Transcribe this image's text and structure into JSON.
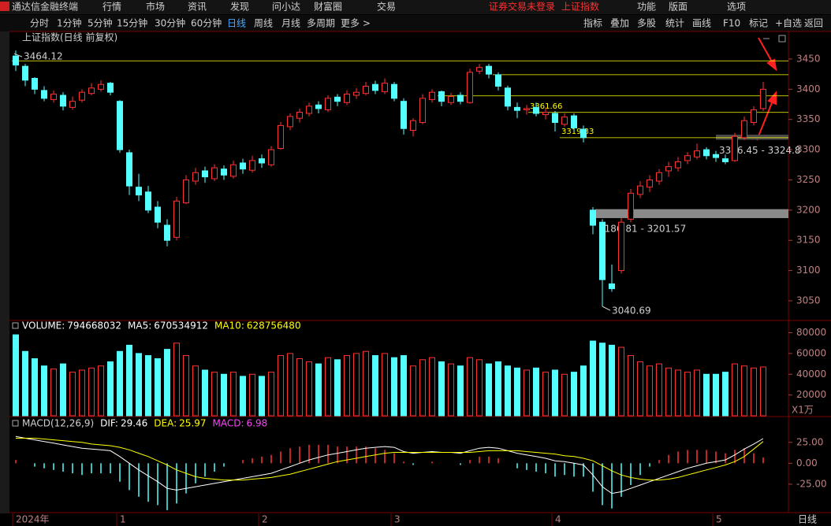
{
  "app_title": "通达信金融终端",
  "menu": [
    "行情",
    "市场",
    "资讯",
    "发现",
    "问小达",
    "财富圈",
    "交易"
  ],
  "status": "证券交易未登录",
  "symbol": "上证指数",
  "top_right": [
    "功能",
    "版面",
    "选项"
  ],
  "periods": [
    "分时",
    "1分钟",
    "5分钟",
    "15分钟",
    "30分钟",
    "60分钟",
    "日线",
    "周线",
    "月线",
    "多周期",
    "更多 >"
  ],
  "active_period": "日线",
  "tools": [
    "指标",
    "叠加",
    "多股",
    "统计",
    "画线",
    "F10",
    "标记",
    "+自选",
    "返回"
  ],
  "period_label": "日线",
  "chart_data": {
    "type": "candlestick",
    "title": "上证指数(日线 前复权)",
    "ylim": [
      3020,
      3476
    ],
    "yticks": [
      3050,
      3100,
      3150,
      3200,
      3250,
      3300,
      3350,
      3400,
      3450
    ],
    "up_color": "#ff3232",
    "down_color": "#54ffff",
    "level_color": "#ffff00",
    "candles": [
      [
        3455,
        3464.12,
        3430,
        3440
      ],
      [
        3438,
        3442,
        3405,
        3415
      ],
      [
        3418,
        3420,
        3392,
        3400
      ],
      [
        3398,
        3405,
        3380,
        3385
      ],
      [
        3383,
        3398,
        3378,
        3392
      ],
      [
        3390,
        3395,
        3365,
        3372
      ],
      [
        3370,
        3388,
        3366,
        3380
      ],
      [
        3382,
        3400,
        3378,
        3395
      ],
      [
        3393,
        3410,
        3390,
        3402
      ],
      [
        3400,
        3415,
        3396,
        3408
      ],
      [
        3410,
        3412,
        3390,
        3395
      ],
      [
        3380,
        3382,
        3295,
        3300
      ],
      [
        3295,
        3300,
        3225,
        3240
      ],
      [
        3238,
        3260,
        3215,
        3225
      ],
      [
        3230,
        3240,
        3195,
        3200
      ],
      [
        3205,
        3215,
        3170,
        3180
      ],
      [
        3175,
        3185,
        3140,
        3150
      ],
      [
        3155,
        3222,
        3150,
        3215
      ],
      [
        3212,
        3258,
        3210,
        3250
      ],
      [
        3248,
        3270,
        3242,
        3262
      ],
      [
        3265,
        3272,
        3245,
        3255
      ],
      [
        3252,
        3276,
        3248,
        3270
      ],
      [
        3268,
        3274,
        3250,
        3258
      ],
      [
        3256,
        3282,
        3252,
        3275
      ],
      [
        3278,
        3285,
        3260,
        3268
      ],
      [
        3266,
        3290,
        3262,
        3282
      ],
      [
        3285,
        3292,
        3270,
        3278
      ],
      [
        3275,
        3306,
        3272,
        3300
      ],
      [
        3302,
        3346,
        3300,
        3340
      ],
      [
        3338,
        3360,
        3332,
        3355
      ],
      [
        3352,
        3368,
        3345,
        3362
      ],
      [
        3360,
        3378,
        3355,
        3372
      ],
      [
        3374,
        3380,
        3360,
        3368
      ],
      [
        3366,
        3390,
        3362,
        3385
      ],
      [
        3387,
        3392,
        3372,
        3380
      ],
      [
        3378,
        3398,
        3374,
        3392
      ],
      [
        3390,
        3402,
        3384,
        3395
      ],
      [
        3393,
        3412,
        3390,
        3405
      ],
      [
        3408,
        3414,
        3392,
        3398
      ],
      [
        3396,
        3418,
        3392,
        3410
      ],
      [
        3408,
        3412,
        3380,
        3385
      ],
      [
        3380,
        3385,
        3325,
        3335
      ],
      [
        3332,
        3352,
        3322,
        3348
      ],
      [
        3345,
        3392,
        3342,
        3385
      ],
      [
        3383,
        3400,
        3378,
        3395
      ],
      [
        3396,
        3398,
        3372,
        3380
      ],
      [
        3378,
        3394,
        3374,
        3388
      ],
      [
        3390,
        3395,
        3375,
        3380
      ],
      [
        3378,
        3434,
        3376,
        3428
      ],
      [
        3430,
        3442,
        3425,
        3436
      ],
      [
        3438,
        3442,
        3418,
        3425
      ],
      [
        3424,
        3428,
        3398,
        3405
      ],
      [
        3402,
        3406,
        3365,
        3372
      ],
      [
        3370,
        3378,
        3352,
        3365
      ],
      [
        3366,
        3374,
        3358,
        3368
      ],
      [
        3370,
        3378,
        3355,
        3360
      ],
      [
        3358,
        3370,
        3350,
        3362
      ],
      [
        3360,
        3364,
        3330,
        3345
      ],
      [
        3342,
        3360,
        3338,
        3354
      ],
      [
        3356,
        3360,
        3330,
        3336
      ],
      [
        3334,
        3340,
        3312,
        3320
      ],
      [
        3200,
        3205,
        3160,
        3175
      ],
      [
        3180,
        3185,
        3040.69,
        3085
      ],
      [
        3078,
        3110,
        3065,
        3070
      ],
      [
        3100,
        3186.81,
        3095,
        3180
      ],
      [
        3185,
        3235,
        3180,
        3228
      ],
      [
        3226,
        3248,
        3220,
        3240
      ],
      [
        3238,
        3258,
        3230,
        3250
      ],
      [
        3248,
        3268,
        3242,
        3262
      ],
      [
        3265,
        3280,
        3255,
        3272
      ],
      [
        3270,
        3288,
        3264,
        3280
      ],
      [
        3282,
        3296,
        3276,
        3290
      ],
      [
        3288,
        3310,
        3284,
        3298
      ],
      [
        3300,
        3304,
        3284,
        3290
      ],
      [
        3292,
        3298,
        3280,
        3287
      ],
      [
        3285,
        3292,
        3276,
        3280
      ],
      [
        3282,
        3328,
        3280,
        3322
      ],
      [
        3320,
        3355,
        3316,
        3348
      ],
      [
        3345,
        3372,
        3340,
        3366
      ],
      [
        3368,
        3412,
        3364,
        3400
      ]
    ],
    "x_labels": [
      "2024年",
      null,
      null,
      null,
      null,
      null,
      null,
      null,
      null,
      null,
      null,
      "1",
      null,
      null,
      null,
      null,
      null,
      null,
      null,
      null,
      null,
      null,
      null,
      null,
      null,
      null,
      "2",
      null,
      null,
      null,
      null,
      null,
      null,
      null,
      null,
      null,
      null,
      null,
      null,
      null,
      "3",
      null,
      null,
      null,
      null,
      null,
      null,
      null,
      null,
      null,
      null,
      null,
      null,
      null,
      null,
      null,
      null,
      "4",
      null,
      null,
      null,
      null,
      null,
      null,
      null,
      null,
      null,
      null,
      null,
      null,
      null,
      null,
      null,
      null,
      "5",
      null,
      null,
      null,
      null,
      null
    ],
    "levels": [
      3447,
      3424,
      3389,
      3361.66,
      3319.83
    ],
    "zones": [
      {
        "low": 3186.81,
        "high": 3201.57,
        "label": "3186.81 - 3201.57"
      },
      {
        "low": 3316.45,
        "high": 3324.8,
        "label": "3316.45 - 3324.8"
      }
    ],
    "volume": {
      "indicators": [
        {
          "name": "VOLUME:",
          "value": 794668032,
          "color": "#ffffff"
        },
        {
          "name": "MA5:",
          "value": 670534912,
          "color": "#ffffff"
        },
        {
          "name": "MA10:",
          "value": 628756480,
          "color": "#ffff00"
        }
      ],
      "values": [
        78000,
        62000,
        55000,
        48000,
        45000,
        50000,
        42000,
        44000,
        46000,
        48000,
        52000,
        62000,
        68000,
        60000,
        58000,
        55000,
        64000,
        70000,
        58000,
        48000,
        44000,
        42000,
        40000,
        42000,
        38000,
        40000,
        38000,
        42000,
        58000,
        60000,
        55000,
        52000,
        50000,
        56000,
        54000,
        58000,
        60000,
        62000,
        58000,
        60000,
        56000,
        58000,
        48000,
        54000,
        56000,
        52000,
        50000,
        48000,
        56000,
        54000,
        50000,
        52000,
        48000,
        46000,
        44000,
        46000,
        42000,
        44000,
        40000,
        42000,
        48000,
        72000,
        70000,
        68000,
        66000,
        58000,
        52000,
        48000,
        50000,
        46000,
        44000,
        42000,
        44000,
        40000,
        40000,
        42000,
        50000,
        48000,
        46000,
        47000
      ],
      "ylim": [
        0,
        88000
      ],
      "yticks": [
        20000,
        40000,
        60000,
        80000
      ],
      "unit": "X1万"
    },
    "macd": {
      "title": "MACD(12,26,9)",
      "indicators": [
        {
          "name": "DIF:",
          "value": 29.46,
          "color": "#ffffff"
        },
        {
          "name": "DEA:",
          "value": 25.97,
          "color": "#ffff00"
        },
        {
          "name": "MACD:",
          "value": 6.98,
          "color": "#ff40ff"
        }
      ],
      "dif": [
        32,
        30,
        28,
        26,
        24,
        22,
        20,
        18,
        17,
        16,
        15,
        8,
        0,
        -8,
        -15,
        -22,
        -30,
        -32,
        -30,
        -28,
        -26,
        -24,
        -22,
        -20,
        -18,
        -16,
        -14,
        -12,
        -8,
        -4,
        0,
        4,
        7,
        10,
        12,
        14,
        16,
        18,
        19,
        20,
        19,
        14,
        12,
        13,
        14,
        13,
        13,
        12,
        15,
        18,
        19,
        18,
        15,
        12,
        10,
        8,
        6,
        3,
        2,
        0,
        -2,
        -14,
        -28,
        -36,
        -34,
        -30,
        -26,
        -22,
        -18,
        -14,
        -10,
        -6,
        -3,
        0,
        2,
        4,
        10,
        17,
        23,
        29.46
      ],
      "dea": [
        30,
        30,
        30,
        29,
        28,
        27,
        26,
        25,
        23,
        22,
        21,
        19,
        16,
        12,
        8,
        3,
        -2,
        -8,
        -12,
        -16,
        -18,
        -19,
        -20,
        -20,
        -20,
        -19,
        -18,
        -17,
        -15,
        -13,
        -10,
        -7,
        -4,
        -1,
        2,
        4,
        6,
        8,
        10,
        12,
        13,
        13,
        13,
        13,
        13,
        13,
        13,
        13,
        13,
        14,
        15,
        15,
        15,
        15,
        14,
        13,
        12,
        11,
        9,
        8,
        6,
        3,
        -3,
        -9,
        -14,
        -17,
        -19,
        -20,
        -20,
        -19,
        -17,
        -14,
        -11,
        -8,
        -5,
        -2,
        2,
        8,
        17,
        25.97
      ],
      "hist": [
        4,
        0,
        -4,
        -6,
        -8,
        -10,
        -12,
        -14,
        -12,
        -12,
        -12,
        -22,
        -32,
        -40,
        -46,
        -50,
        -56,
        -48,
        -36,
        -24,
        -16,
        -10,
        -4,
        0,
        4,
        6,
        8,
        10,
        14,
        18,
        20,
        22,
        22,
        22,
        20,
        20,
        20,
        20,
        18,
        16,
        12,
        2,
        -2,
        0,
        2,
        0,
        0,
        -2,
        4,
        8,
        8,
        6,
        0,
        -6,
        -8,
        -10,
        -12,
        -16,
        -14,
        -16,
        -16,
        -34,
        -50,
        -54,
        -40,
        -26,
        -14,
        -4,
        4,
        10,
        14,
        16,
        16,
        16,
        14,
        12,
        16,
        18,
        12,
        6.98
      ],
      "ylim": [
        -58,
        53
      ],
      "yticks": [
        {
          "value": 25,
          "label": "25.00"
        },
        {
          "value": 0,
          "label": "0.00"
        },
        {
          "value": -25,
          "label": "-25.00"
        }
      ]
    }
  }
}
